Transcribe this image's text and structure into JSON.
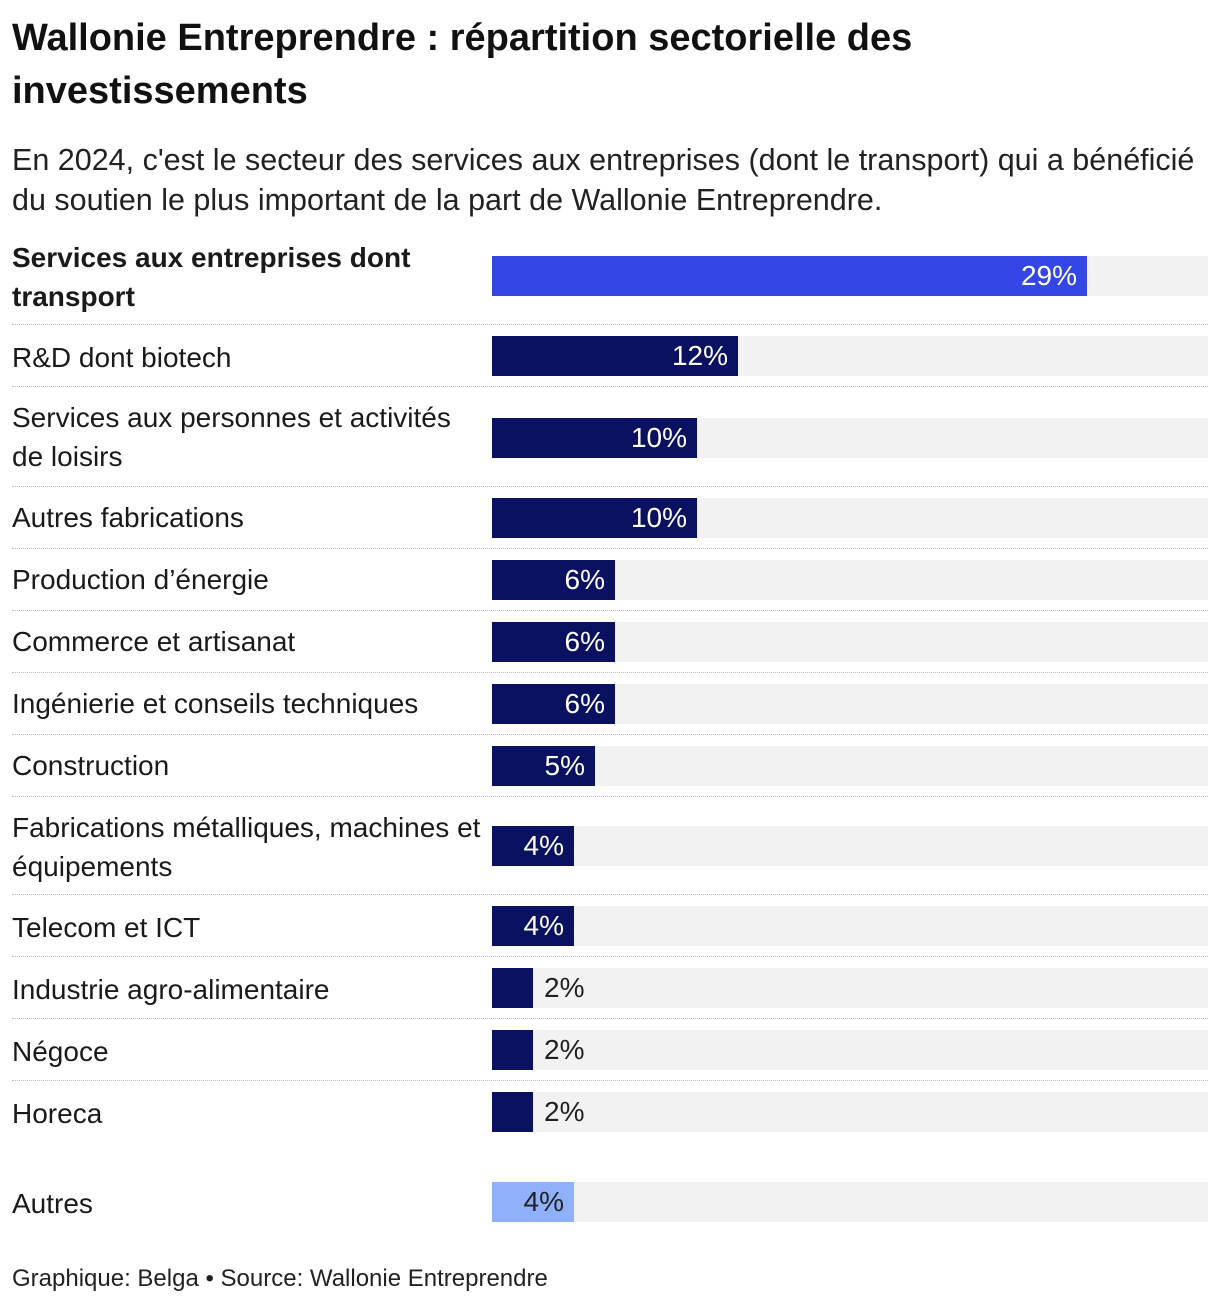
{
  "title": "Wallonie Entreprendre : répartition sectorielle des investissements",
  "subtitle": "En 2024, c'est le secteur des services aux entreprises (dont le transport) qui a bénéficié du soutien le plus important de la part de Wallonie Entreprendre.",
  "footer": {
    "credit": "Graphique: Belga",
    "separator": "•",
    "source": "Source: Wallonie Entreprendre"
  },
  "colors": {
    "highlight": "#3446e6",
    "main": "#0a1160",
    "other": "#8fb1fb",
    "track": "#f2f2f2"
  },
  "chart_data": {
    "type": "bar",
    "orientation": "horizontal",
    "unit": "%",
    "xlim": [
      0,
      35
    ],
    "categories": [
      "Services aux entreprises dont transport",
      "R&D dont biotech",
      "Services aux personnes et activités de loisirs",
      "Autres fabrications",
      "Production d’énergie",
      "Commerce et artisanat",
      "Ingénierie et conseils techniques",
      "Construction",
      "Fabrications métalliques, machines et équipements",
      "Telecom et ICT",
      "Industrie agro-alimentaire",
      "Négoce",
      "Horeca",
      "Autres"
    ],
    "values": [
      29,
      12,
      10,
      10,
      6,
      6,
      6,
      5,
      4,
      4,
      2,
      2,
      2,
      4
    ],
    "labels": [
      "29%",
      "12%",
      "10%",
      "10%",
      "6%",
      "6%",
      "6%",
      "5%",
      "4%",
      "4%",
      "2%",
      "2%",
      "2%",
      "4%"
    ],
    "highlighted": "Services aux entreprises dont transport",
    "grid": false,
    "legend": "none"
  }
}
